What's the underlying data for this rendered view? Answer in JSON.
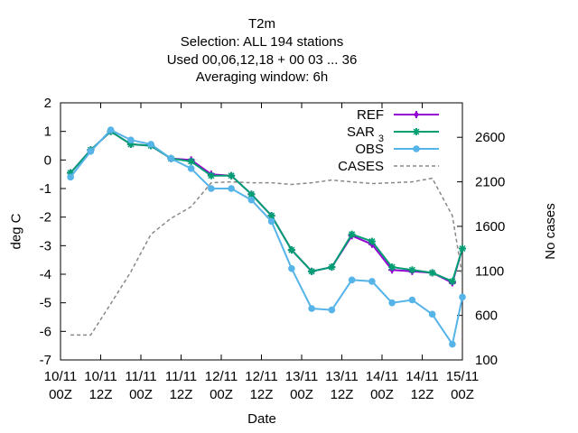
{
  "chart_data": {
    "type": "line",
    "title_lines": [
      "T2m",
      "Selection: ALL    194 stations",
      "Used  00,06,12,18  + 00 03 ... 36",
      "Averaging window:  6h"
    ],
    "xlabel": "Date",
    "ylabel": "deg C",
    "y2label": "No cases",
    "xlim": [
      0,
      20
    ],
    "ylim": [
      -7,
      2
    ],
    "y2lim": [
      100,
      2987
    ],
    "x_ticks": [
      {
        "x": 0,
        "line1": "10/11",
        "line2": "00Z"
      },
      {
        "x": 2,
        "line1": "10/11",
        "line2": "12Z"
      },
      {
        "x": 4,
        "line1": "11/11",
        "line2": "00Z"
      },
      {
        "x": 6,
        "line1": "11/11",
        "line2": "12Z"
      },
      {
        "x": 8,
        "line1": "12/11",
        "line2": "00Z"
      },
      {
        "x": 10,
        "line1": "12/11",
        "line2": "12Z"
      },
      {
        "x": 12,
        "line1": "13/11",
        "line2": "00Z"
      },
      {
        "x": 14,
        "line1": "13/11",
        "line2": "12Z"
      },
      {
        "x": 16,
        "line1": "14/11",
        "line2": "00Z"
      },
      {
        "x": 18,
        "line1": "14/11",
        "line2": "12Z"
      },
      {
        "x": 20,
        "line1": "15/11",
        "line2": "00Z"
      }
    ],
    "y_ticks": [
      "2",
      "1",
      "0",
      "-1",
      "-2",
      "-3",
      "-4",
      "-5",
      "-6",
      "-7"
    ],
    "y2_ticks": [
      "2600",
      "2100",
      "1600",
      "1100",
      "600",
      "100"
    ],
    "legend_position": "top-right",
    "series": [
      {
        "name": "REF",
        "color": "#9400d3",
        "marker": "plus",
        "axis": "left",
        "x": [
          0.5,
          1.5,
          2.5,
          3.5,
          4.5,
          5.5,
          6.5,
          7.5,
          8.5,
          9.5,
          10.5,
          11.5,
          12.5,
          13.5,
          14.5,
          15.5,
          16.5,
          17.5,
          18.5,
          19.5,
          20
        ],
        "y": [
          -0.45,
          0.35,
          1.0,
          0.55,
          0.5,
          0.05,
          0.0,
          -0.5,
          -0.55,
          -1.2,
          -1.95,
          -3.15,
          -3.9,
          -3.75,
          -2.65,
          -2.95,
          -3.85,
          -3.9,
          -3.95,
          -4.3,
          -3.1
        ]
      },
      {
        "name": "SAR_3",
        "color": "#009e73",
        "marker": "star",
        "axis": "left",
        "x": [
          0.5,
          1.5,
          2.5,
          3.5,
          4.5,
          5.5,
          6.5,
          7.5,
          8.5,
          9.5,
          10.5,
          11.5,
          12.5,
          13.5,
          14.5,
          15.5,
          16.5,
          17.5,
          18.5,
          19.5,
          20
        ],
        "y": [
          -0.45,
          0.35,
          1.0,
          0.55,
          0.5,
          0.05,
          -0.05,
          -0.55,
          -0.55,
          -1.2,
          -1.95,
          -3.15,
          -3.9,
          -3.75,
          -2.6,
          -2.85,
          -3.75,
          -3.85,
          -3.95,
          -4.25,
          -3.1
        ]
      },
      {
        "name": "OBS",
        "color": "#56b4e9",
        "marker": "circle",
        "axis": "left",
        "x": [
          0.5,
          1.5,
          2.5,
          3.5,
          4.5,
          5.5,
          6.5,
          7.5,
          8.5,
          9.5,
          10.5,
          11.5,
          12.5,
          13.5,
          14.5,
          15.5,
          16.5,
          17.5,
          18.5,
          19.5,
          20
        ],
        "y": [
          -0.6,
          0.3,
          1.05,
          0.7,
          0.55,
          0.05,
          -0.3,
          -1.0,
          -1.0,
          -1.4,
          -2.15,
          -3.8,
          -5.2,
          -5.25,
          -4.2,
          -4.25,
          -5.0,
          -4.9,
          -5.4,
          -6.45,
          -4.8
        ]
      },
      {
        "name": "CASES",
        "color": "#888888",
        "marker": "none",
        "dash": true,
        "axis": "right",
        "x": [
          0.5,
          1.5,
          2.5,
          3.5,
          4.5,
          5.5,
          6.5,
          7.5,
          8.5,
          9.5,
          10.5,
          11.5,
          12.5,
          13.5,
          14.5,
          15.5,
          16.5,
          17.5,
          18.5,
          19.5,
          20
        ],
        "y": [
          380,
          380,
          730,
          1090,
          1510,
          1690,
          1820,
          2090,
          2100,
          2090,
          2090,
          2070,
          2090,
          2120,
          2100,
          2080,
          2090,
          2100,
          2140,
          1720,
          1040
        ]
      }
    ],
    "legend": [
      {
        "label": "REF",
        "sub": ""
      },
      {
        "label": "SAR",
        "sub": "3"
      },
      {
        "label": "OBS",
        "sub": ""
      },
      {
        "label": "CASES",
        "sub": ""
      }
    ]
  }
}
